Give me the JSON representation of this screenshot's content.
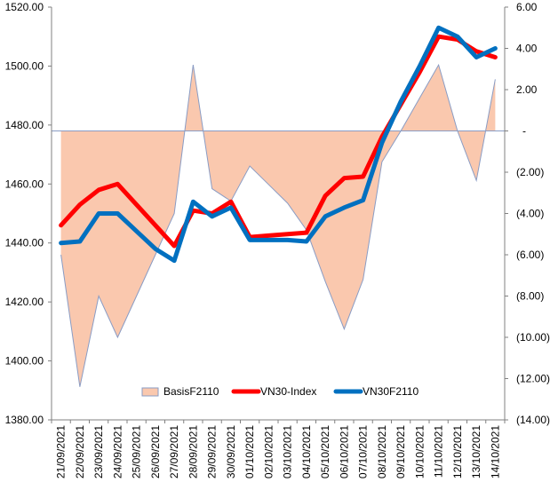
{
  "chart_data": {
    "type": "line",
    "x": [
      "21/09/2021",
      "22/09/2021",
      "23/09/2021",
      "24/09/2021",
      "25/09/2021",
      "26/09/2021",
      "27/09/2021",
      "28/09/2021",
      "29/09/2021",
      "30/09/2021",
      "01/10/2021",
      "02/10/2021",
      "03/10/2021",
      "04/10/2021",
      "05/10/2021",
      "06/10/2021",
      "07/10/2021",
      "08/10/2021",
      "09/10/2021",
      "10/10/2021",
      "11/10/2021",
      "12/10/2021",
      "13/10/2021",
      "14/10/2021"
    ],
    "y_left": {
      "ylim": [
        1380,
        1520
      ],
      "ticks": [
        1380,
        1400,
        1420,
        1440,
        1460,
        1480,
        1500,
        1520
      ],
      "tick_labels": [
        "1380.00",
        "1400.00",
        "1420.00",
        "1440.00",
        "1460.00",
        "1480.00",
        "1500.00",
        "1520.00"
      ]
    },
    "y_right": {
      "ylim": [
        -14,
        6
      ],
      "ticks": [
        -14,
        -12,
        -10,
        -8,
        -6,
        -4,
        -2,
        0,
        2,
        4,
        6
      ],
      "tick_labels": [
        "(14.00)",
        "(12.00)",
        "(10.00)",
        "(8.00)",
        "(6.00)",
        "(4.00)",
        "(2.00)",
        "-",
        "2.00",
        "4.00",
        "6.00"
      ]
    },
    "legend_position": "bottom-center",
    "series": [
      {
        "name": "BasisF2110",
        "type": "area",
        "axis": "right",
        "color": "#fac8ae",
        "edge_color": "#8a9cc4",
        "values": [
          -6.0,
          -12.4,
          -8.0,
          -10.0,
          -8.0,
          -6.0,
          -4.0,
          3.2,
          -2.8,
          -3.4,
          -1.7,
          -2.6,
          -3.5,
          -4.8,
          -7.3,
          -9.6,
          -7.2,
          -1.5,
          0.0,
          1.6,
          3.2,
          0.0,
          -2.4,
          2.5
        ]
      },
      {
        "name": "VN30-Index",
        "type": "line",
        "axis": "left",
        "color": "#ff0000",
        "values": [
          1446,
          1453,
          1458,
          1460,
          1453,
          1446,
          1439,
          1451,
          1450,
          1454,
          1442,
          1442.5,
          1443,
          1443.5,
          1456,
          1462,
          1462.5,
          1476,
          1487,
          1498,
          1510,
          1509,
          1505,
          1503
        ]
      },
      {
        "name": "VN30F2110",
        "type": "line",
        "axis": "left",
        "color": "#0070c0",
        "values": [
          1440,
          1440.5,
          1450,
          1450,
          1444,
          1438,
          1434,
          1454,
          1449,
          1452,
          1441,
          1441,
          1441,
          1440.5,
          1449,
          1452,
          1454.5,
          1474,
          1488,
          1500,
          1513,
          1510,
          1503,
          1506
        ]
      }
    ]
  }
}
